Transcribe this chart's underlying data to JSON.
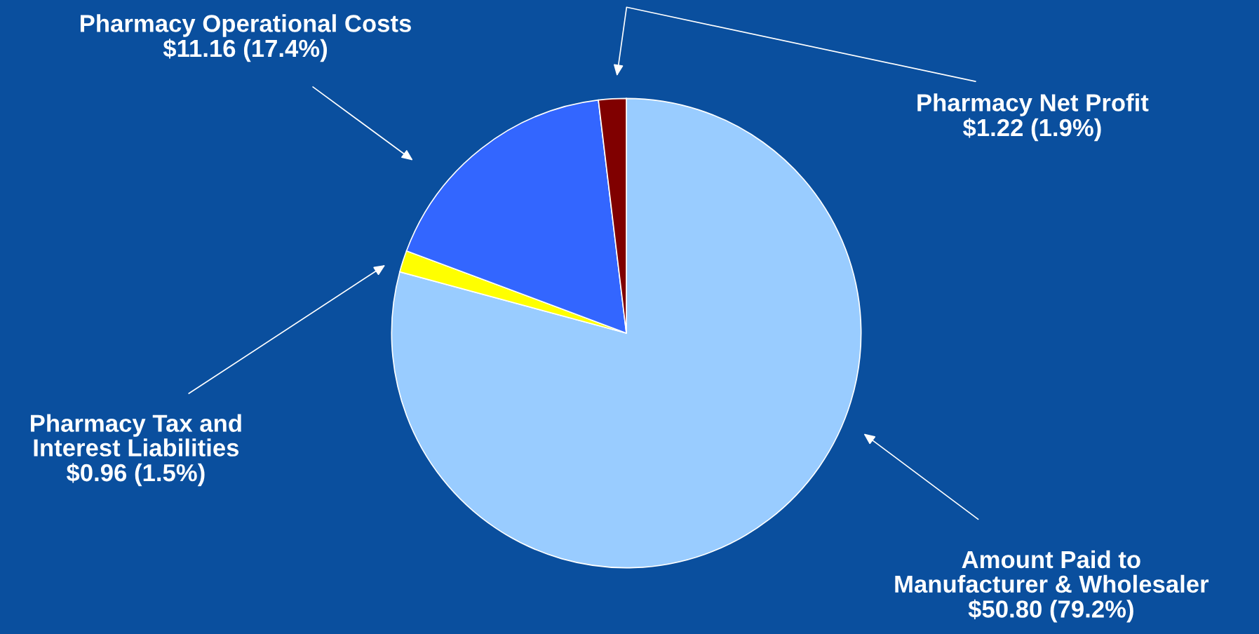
{
  "chart_data": {
    "type": "pie",
    "categories": [
      "Amount Paid to\nManufacturer & Wholesaler",
      "Pharmacy Tax and\nInterest Liabilities",
      "Pharmacy Operational Costs",
      "Pharmacy Net Profit"
    ],
    "values": [
      50.8,
      0.96,
      11.16,
      1.22
    ],
    "value_labels": [
      "$50.80 (79.2%)",
      "$0.96 (1.5%)",
      "$11.16 (17.4%)",
      "$1.22 (1.9%)"
    ],
    "colors": [
      "#99ccff",
      "#ffff00",
      "#3366ff",
      "#800000"
    ]
  }
}
